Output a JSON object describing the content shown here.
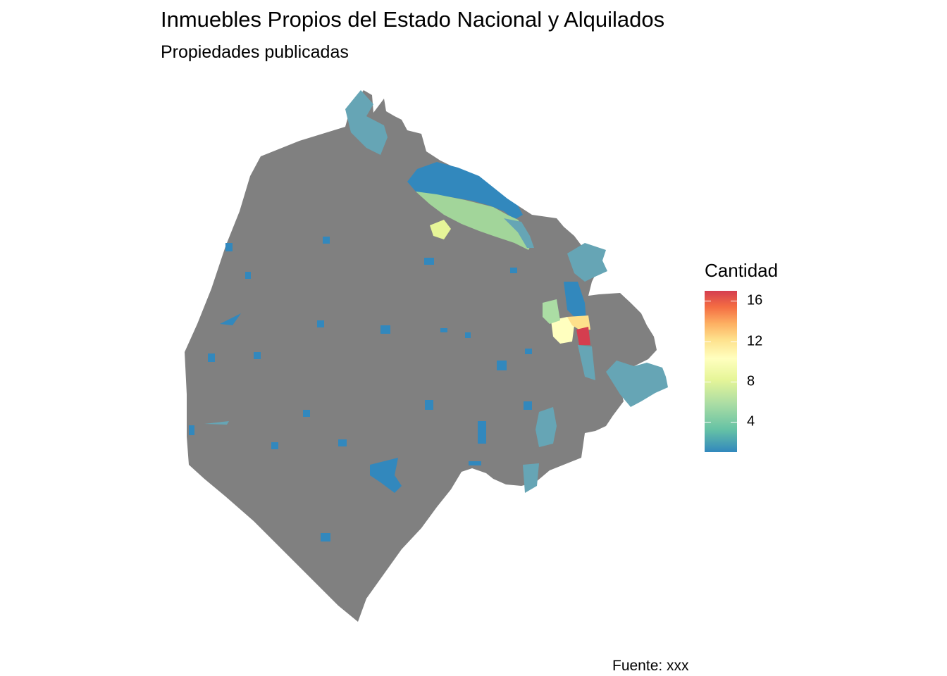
{
  "header": {
    "title": "Inmuebles Propios del Estado Nacional y Alquilados",
    "subtitle": "Propiedades publicadas"
  },
  "legend": {
    "title": "Cantidad",
    "range": [
      1,
      17
    ],
    "ticks": [
      {
        "value": 4,
        "label": "4"
      },
      {
        "value": 8,
        "label": "8"
      },
      {
        "value": 12,
        "label": "12"
      },
      {
        "value": 16,
        "label": "16"
      }
    ],
    "palette": [
      "#3288bd",
      "#66c2a5",
      "#abdda4",
      "#e6f598",
      "#ffffbf",
      "#fee08b",
      "#fdae61",
      "#f46d43",
      "#d53e4f"
    ]
  },
  "map": {
    "base_color": "#808080",
    "zero_color": "#808080"
  },
  "caption": "Fuente: xxx"
}
